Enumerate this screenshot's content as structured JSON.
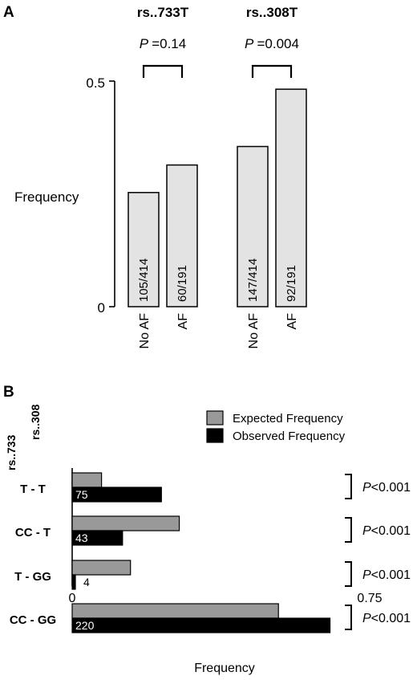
{
  "chart_data": [
    {
      "type": "bar",
      "panel": "A",
      "ylabel": "Frequency",
      "ylim": [
        0,
        0.5
      ],
      "yticks": [
        "0",
        "0.5"
      ],
      "groups": [
        {
          "snp": "rs..733T",
          "p_prefix": "P",
          "p_value": "=0.14",
          "bars": [
            {
              "category": "No AF",
              "value": 0.253,
              "label": "105/414"
            },
            {
              "category": "AF",
              "value": 0.314,
              "label": "60/191"
            }
          ]
        },
        {
          "snp": "rs..308T",
          "p_prefix": "P",
          "p_value": "=0.004",
          "bars": [
            {
              "category": "No AF",
              "value": 0.355,
              "label": "147/414"
            },
            {
              "category": "AF",
              "value": 0.482,
              "label": "92/191"
            }
          ]
        }
      ],
      "colors": {
        "bar_fill": "#e3e3e3",
        "bar_stroke": "#000000"
      }
    },
    {
      "type": "bar",
      "orientation": "horizontal",
      "panel": "B",
      "xlabel": "Frequency",
      "xlim": [
        0,
        0.75
      ],
      "xticks": [
        "0",
        "0.75"
      ],
      "row_headers": [
        "rs..733",
        "rs..308"
      ],
      "categories": [
        "T  -  T",
        "CC -  T",
        "T  - GG",
        "CC - GG"
      ],
      "series": [
        {
          "name": "Expected Frequency",
          "values": [
            0.074,
            0.27,
            0.147,
            0.52
          ],
          "color": "#999999"
        },
        {
          "name": "Observed Frequency",
          "values": [
            0.225,
            0.127,
            0.008,
            0.65
          ],
          "labels": [
            "75",
            "43",
            "4",
            "220"
          ],
          "color": "#000000"
        }
      ],
      "p_values": [
        {
          "prefix": "P",
          "text": "<0.001"
        },
        {
          "prefix": "P",
          "text": "<0.001"
        },
        {
          "prefix": "P",
          "text": "<0.001"
        },
        {
          "prefix": "P",
          "text": "<0.001"
        }
      ]
    }
  ]
}
